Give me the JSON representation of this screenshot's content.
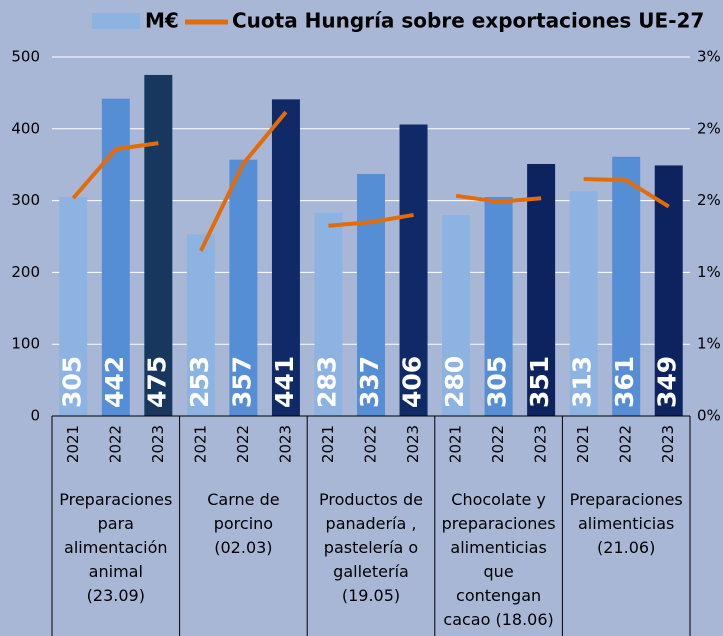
{
  "chart_data": {
    "type": "bar-line",
    "categories": [
      "2021",
      "2022",
      "2023",
      "2021",
      "2022",
      "2023",
      "2021",
      "2022",
      "2023",
      "2021",
      "2022",
      "2023",
      "2021",
      "2022",
      "2023"
    ],
    "groups": [
      {
        "label": [
          "Preparaciones",
          "para",
          "alimentación",
          "animal",
          "(23.09)"
        ]
      },
      {
        "label": [
          "Carne de",
          "porcino",
          "(02.03)"
        ]
      },
      {
        "label": [
          "Productos de",
          "panadería ,",
          "pastelería o",
          "galletería",
          "(19.05)"
        ]
      },
      {
        "label": [
          "Chocolate y",
          "preparaciones",
          "alimenticias",
          "que",
          "contengan",
          "cacao  (18.06)"
        ]
      },
      {
        "label": [
          "Preparaciones",
          "alimenticias",
          "(21.06)"
        ]
      }
    ],
    "series": [
      {
        "name": "M€",
        "type": "bar",
        "color": "#8db3e2",
        "colors": [
          "#8db3e2",
          "#558ed5",
          "#17375e",
          "#8db3e2",
          "#558ed5",
          "#0f2a66",
          "#8db3e2",
          "#558ed5",
          "#0f2a66",
          "#8db3e2",
          "#558ed5",
          "#0c2360",
          "#8db3e2",
          "#558ed5",
          "#0c2360"
        ],
        "values": [
          305,
          442,
          475,
          253,
          357,
          441,
          283,
          337,
          406,
          280,
          305,
          351,
          313,
          361,
          349
        ]
      },
      {
        "name": "Cuota Hungría sobre exportaciones UE-27",
        "type": "line",
        "color": "#e36c09",
        "axis": "y2",
        "values": [
          1.82,
          2.23,
          2.28,
          1.38,
          2.11,
          2.54,
          1.59,
          1.62,
          1.68,
          1.84,
          1.79,
          1.82,
          1.98,
          1.97,
          1.75
        ]
      }
    ],
    "ylim": [
      0,
      500
    ],
    "yticks": [
      0,
      100,
      200,
      300,
      400,
      500
    ],
    "y2lim": [
      0,
      3
    ],
    "y2ticks": [
      {
        "value": 0,
        "label": "0%"
      },
      {
        "value": 0.6,
        "label": "1%"
      },
      {
        "value": 1.2,
        "label": "1%"
      },
      {
        "value": 1.8,
        "label": "2%"
      },
      {
        "value": 2.4,
        "label": "2%"
      },
      {
        "value": 3,
        "label": "3%"
      }
    ],
    "grid": true
  }
}
